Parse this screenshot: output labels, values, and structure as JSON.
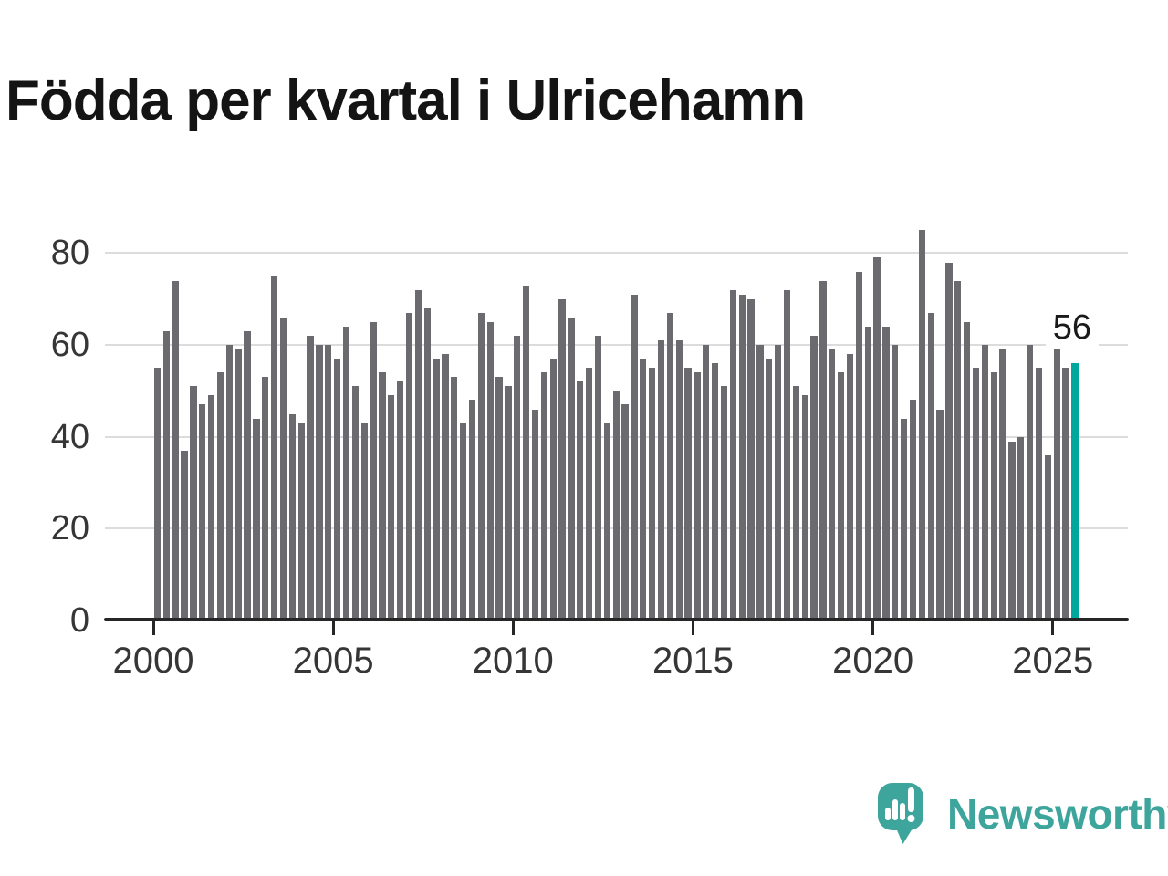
{
  "header": {
    "title": "Födda per kvartal i Ulricehamn"
  },
  "chart_data": {
    "type": "bar",
    "title": "Födda per kvartal i Ulricehamn",
    "categories": [
      "2000 Q1",
      "2000 Q2",
      "2000 Q3",
      "2000 Q4",
      "2001 Q1",
      "2001 Q2",
      "2001 Q3",
      "2001 Q4",
      "2002 Q1",
      "2002 Q2",
      "2002 Q3",
      "2002 Q4",
      "2003 Q1",
      "2003 Q2",
      "2003 Q3",
      "2003 Q4",
      "2004 Q1",
      "2004 Q2",
      "2004 Q3",
      "2004 Q4",
      "2005 Q1",
      "2005 Q2",
      "2005 Q3",
      "2005 Q4",
      "2006 Q1",
      "2006 Q2",
      "2006 Q3",
      "2006 Q4",
      "2007 Q1",
      "2007 Q2",
      "2007 Q3",
      "2007 Q4",
      "2008 Q1",
      "2008 Q2",
      "2008 Q3",
      "2008 Q4",
      "2009 Q1",
      "2009 Q2",
      "2009 Q3",
      "2009 Q4",
      "2010 Q1",
      "2010 Q2",
      "2010 Q3",
      "2010 Q4",
      "2011 Q1",
      "2011 Q2",
      "2011 Q3",
      "2011 Q4",
      "2012 Q1",
      "2012 Q2",
      "2012 Q3",
      "2012 Q4",
      "2013 Q1",
      "2013 Q2",
      "2013 Q3",
      "2013 Q4",
      "2014 Q1",
      "2014 Q2",
      "2014 Q3",
      "2014 Q4",
      "2015 Q1",
      "2015 Q2",
      "2015 Q3",
      "2015 Q4",
      "2016 Q1",
      "2016 Q2",
      "2016 Q3",
      "2016 Q4",
      "2017 Q1",
      "2017 Q2",
      "2017 Q3",
      "2017 Q4",
      "2018 Q1",
      "2018 Q2",
      "2018 Q3",
      "2018 Q4",
      "2019 Q1",
      "2019 Q2",
      "2019 Q3",
      "2019 Q4",
      "2020 Q1",
      "2020 Q2",
      "2020 Q3",
      "2020 Q4",
      "2021 Q1",
      "2021 Q2",
      "2021 Q3",
      "2021 Q4",
      "2022 Q1",
      "2022 Q2",
      "2022 Q3",
      "2022 Q4",
      "2023 Q1",
      "2023 Q2",
      "2023 Q3",
      "2023 Q4",
      "2024 Q1",
      "2024 Q2",
      "2024 Q3",
      "2024 Q4",
      "2025 Q1",
      "2025 Q2",
      "2025 Q3"
    ],
    "values": [
      55,
      63,
      74,
      37,
      51,
      47,
      49,
      54,
      60,
      59,
      63,
      44,
      53,
      75,
      66,
      45,
      43,
      62,
      60,
      60,
      57,
      64,
      51,
      43,
      65,
      54,
      49,
      52,
      67,
      72,
      68,
      57,
      58,
      53,
      43,
      48,
      67,
      65,
      53,
      51,
      62,
      73,
      46,
      54,
      57,
      70,
      66,
      52,
      55,
      62,
      43,
      50,
      47,
      71,
      57,
      55,
      61,
      67,
      61,
      55,
      54,
      60,
      56,
      51,
      72,
      71,
      70,
      60,
      57,
      60,
      72,
      51,
      49,
      62,
      74,
      59,
      54,
      58,
      76,
      64,
      79,
      64,
      60,
      44,
      48,
      85,
      67,
      46,
      78,
      74,
      65,
      55,
      60,
      54,
      59,
      39,
      40,
      60,
      55,
      36,
      59,
      55,
      56
    ],
    "highlight": {
      "index": 102,
      "category": "2025 Q3",
      "value": 56,
      "label": "56"
    },
    "x_tick_labels": [
      "2000",
      "2005",
      "2010",
      "2015",
      "2020",
      "2025"
    ],
    "y_tick_labels": [
      "0",
      "20",
      "40",
      "60",
      "80"
    ],
    "ylim": [
      0,
      88
    ],
    "grid": "horizontal",
    "legend": "none",
    "colors": {
      "bar": "#6a6a6f",
      "highlight": "#00a79c",
      "gridline": "#dcdcdc",
      "axis": "#262626",
      "tick_label": "#363636",
      "annotation": "#1a1a1a"
    }
  },
  "branding": {
    "name": "Newsworthy",
    "color": "#3da59c",
    "icon": "newsworthy-speech-bubble-chart-icon"
  }
}
